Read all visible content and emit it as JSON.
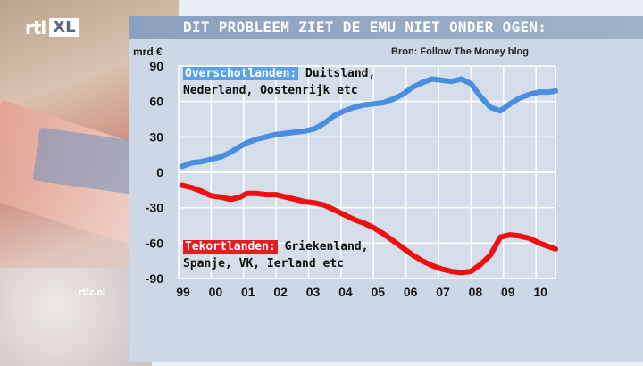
{
  "header": {
    "logo_text": "rtl XL",
    "title": "DIT PROBLEEM ZIET DE EMU NIET ONDER OGEN:",
    "watermark": "rtlz.nl"
  },
  "colors": {
    "surplus": "#4a8ee0",
    "deficit": "#ee1010",
    "grid": "#ffffff"
  },
  "chart_data": {
    "type": "line",
    "source": "Bron: Follow The Money blog",
    "ylabel": "mrd €",
    "ylim": [
      -90,
      90
    ],
    "yticks": [
      90,
      60,
      30,
      0,
      -30,
      -60,
      -90
    ],
    "xlim": [
      1999,
      2010.6
    ],
    "xticks": [
      {
        "x": 1999,
        "label": "99"
      },
      {
        "x": 2000,
        "label": "00"
      },
      {
        "x": 2001,
        "label": "01"
      },
      {
        "x": 2002,
        "label": "02"
      },
      {
        "x": 2003,
        "label": "03"
      },
      {
        "x": 2004,
        "label": "04"
      },
      {
        "x": 2005,
        "label": "05"
      },
      {
        "x": 2006,
        "label": "06"
      },
      {
        "x": 2007,
        "label": "07"
      },
      {
        "x": 2008,
        "label": "08"
      },
      {
        "x": 2009,
        "label": "09"
      },
      {
        "x": 2010,
        "label": "10"
      }
    ],
    "grid": true,
    "series": [
      {
        "key": "surplus",
        "label_highlight": "Overschotlanden:",
        "label_line1": " Duitsland,",
        "label_line2": "Nederland, Oostenrijk etc",
        "x": [
          1999.1,
          1999.4,
          1999.7,
          2000.0,
          2000.3,
          2000.6,
          2000.9,
          2001.1,
          2001.4,
          2001.7,
          2002.0,
          2002.3,
          2002.6,
          2002.9,
          2003.2,
          2003.5,
          2003.8,
          2004.1,
          2004.4,
          2004.7,
          2005.0,
          2005.3,
          2005.6,
          2005.9,
          2006.2,
          2006.5,
          2006.8,
          2007.1,
          2007.4,
          2007.7,
          2008.0,
          2008.3,
          2008.6,
          2008.9,
          2009.2,
          2009.5,
          2009.8,
          2010.1,
          2010.4,
          2010.6
        ],
        "y": [
          5,
          8,
          9,
          11,
          13,
          17,
          22,
          25,
          28,
          30,
          32,
          33,
          34,
          35,
          37,
          42,
          48,
          52,
          55,
          57,
          58,
          59,
          62,
          66,
          72,
          76,
          79,
          78,
          77,
          79,
          75,
          64,
          55,
          52,
          58,
          63,
          66,
          68,
          68,
          69
        ]
      },
      {
        "key": "deficit",
        "label_highlight": "Tekortlanden:",
        "label_line1": " Griekenland,",
        "label_line2": "Spanje, VK, Ierland etc",
        "x": [
          1999.1,
          1999.4,
          1999.7,
          2000.0,
          2000.3,
          2000.6,
          2000.9,
          2001.1,
          2001.4,
          2001.7,
          2002.0,
          2002.3,
          2002.6,
          2002.9,
          2003.2,
          2003.5,
          2003.8,
          2004.1,
          2004.4,
          2004.7,
          2005.0,
          2005.3,
          2005.6,
          2005.9,
          2006.2,
          2006.5,
          2006.8,
          2007.1,
          2007.4,
          2007.7,
          2008.0,
          2008.3,
          2008.6,
          2008.9,
          2009.2,
          2009.5,
          2009.8,
          2010.1,
          2010.4,
          2010.6
        ],
        "y": [
          -11,
          -13,
          -16,
          -20,
          -21,
          -23,
          -21,
          -18,
          -18,
          -19,
          -19,
          -21,
          -23,
          -25,
          -26,
          -28,
          -32,
          -36,
          -40,
          -43,
          -47,
          -52,
          -58,
          -64,
          -70,
          -75,
          -79,
          -82,
          -84,
          -85,
          -84,
          -78,
          -70,
          -55,
          -53,
          -54,
          -56,
          -60,
          -63,
          -65
        ]
      }
    ]
  }
}
